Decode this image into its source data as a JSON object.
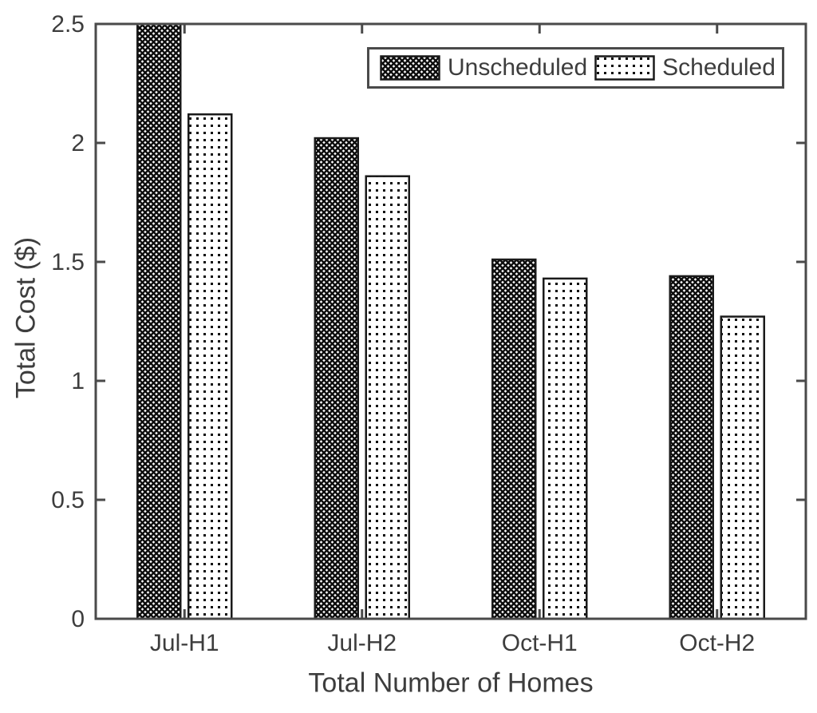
{
  "figure": {
    "background": "#ffffff"
  },
  "chart_data": {
    "type": "bar",
    "title": "",
    "categories": [
      "Jul-H1",
      "Jul-H2",
      "Oct-H1",
      "Oct-H2"
    ],
    "series": [
      {
        "name": "Unscheduled",
        "pattern": "crosshatch",
        "values": [
          2.5,
          2.02,
          1.51,
          1.44
        ]
      },
      {
        "name": "Scheduled",
        "pattern": "dots",
        "values": [
          2.12,
          1.86,
          1.43,
          1.27
        ]
      }
    ],
    "xlabel": "Total Number of Homes",
    "ylabel": "Total Cost ($)",
    "ylim": [
      0,
      2.5
    ],
    "yticks": [
      0,
      0.5,
      1,
      1.5,
      2,
      2.5
    ],
    "ytick_labels": [
      "0",
      "0.5",
      "1",
      "1.5",
      "2",
      "2.5"
    ],
    "grid": false,
    "legend": {
      "position": "top-right",
      "entries": [
        "Unscheduled",
        "Scheduled"
      ]
    },
    "colors": {
      "bar_fill": "#ffffff",
      "hatch": "#0d0d0d",
      "bar_edge": "#1a1a1a",
      "axis": "#4a4a4a",
      "text": "#3d3d3d"
    }
  }
}
